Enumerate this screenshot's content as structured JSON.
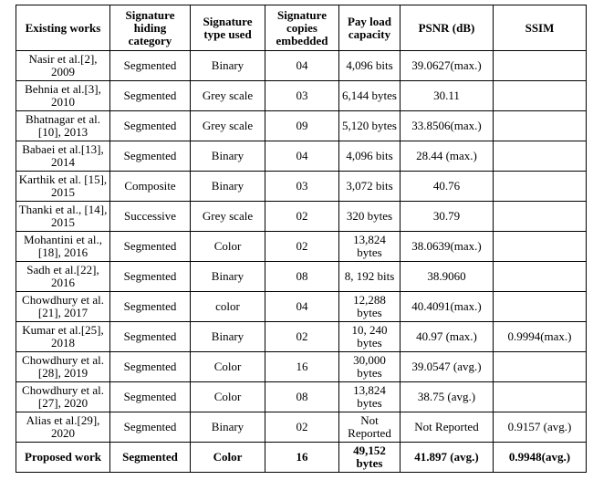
{
  "headers": [
    "Existing works",
    "Signature hiding category",
    "Signature type used",
    "Signature copies embedded",
    "Pay load capacity",
    "PSNR (dB)",
    "SSIM"
  ],
  "rows": [
    [
      "Nasir et al.[2], 2009",
      "Segmented",
      "Binary",
      "04",
      "4,096 bits",
      "39.0627(max.)",
      ""
    ],
    [
      "Behnia et al.[3], 2010",
      "Segmented",
      "Grey scale",
      "03",
      "6,144 bytes",
      "30.11",
      ""
    ],
    [
      "Bhatnagar et al.[10], 2013",
      "Segmented",
      "Grey scale",
      "09",
      "5,120 bytes",
      "33.8506(max.)",
      ""
    ],
    [
      "Babaei et al.[13], 2014",
      "Segmented",
      "Binary",
      "04",
      "4,096 bits",
      "28.44 (max.)",
      ""
    ],
    [
      "Karthik et al. [15], 2015",
      "Composite",
      "Binary",
      "03",
      "3,072 bits",
      "40.76",
      ""
    ],
    [
      "Thanki et al., [14], 2015",
      "Successive",
      "Grey scale",
      "02",
      "320 bytes",
      "30.79",
      ""
    ],
    [
      "Mohantini et al., [18], 2016",
      "Segmented",
      "Color",
      "02",
      "13,824 bytes",
      "38.0639(max.)",
      ""
    ],
    [
      "Sadh et al.[22], 2016",
      "Segmented",
      "Binary",
      "08",
      "8, 192 bits",
      "38.9060",
      ""
    ],
    [
      "Chowdhury et al.[21], 2017",
      "Segmented",
      "color",
      "04",
      "12,288 bytes",
      "40.4091(max.)",
      ""
    ],
    [
      "Kumar et al.[25], 2018",
      "Segmented",
      "Binary",
      "02",
      "10, 240 bytes",
      "40.97 (max.)",
      "0.9994(max.)"
    ],
    [
      "Chowdhury et al.[28], 2019",
      "Segmented",
      "Color",
      "16",
      "30,000 bytes",
      "39.0547 (avg.)",
      ""
    ],
    [
      "Chowdhury et al.[27], 2020",
      "Segmented",
      "Color",
      "08",
      "13,824 bytes",
      "38.75 (avg.)",
      ""
    ],
    [
      "Alias et al.[29], 2020",
      "Segmented",
      "Binary",
      "02",
      "Not Reported",
      "Not Reported",
      "0.9157 (avg.)"
    ],
    [
      "Proposed work",
      "Segmented",
      "Color",
      "16",
      "49,152 bytes",
      "41.897 (avg.)",
      "0.9948(avg.)"
    ]
  ]
}
